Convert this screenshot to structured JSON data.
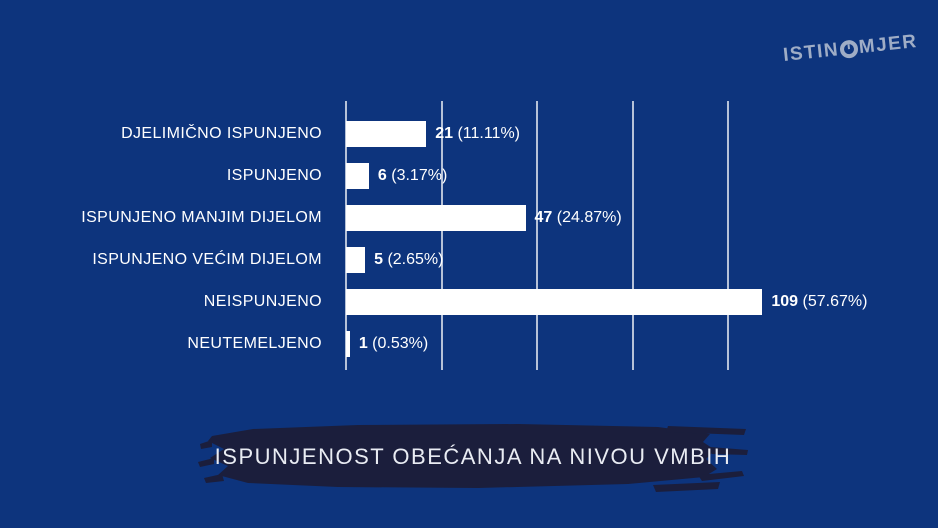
{
  "page": {
    "background_color": "#0d347d"
  },
  "logo": {
    "text_left": "ISTIN",
    "text_right": "MJER",
    "icon": "gauge-icon",
    "color": "#9fadc6"
  },
  "chart_data": {
    "type": "bar",
    "orientation": "horizontal",
    "title": "ISPUNJENOST OBEĆANJA NA NIVOU VMBIH",
    "categories": [
      "DJELIMIČNO ISPUNJENO",
      "ISPUNJENO",
      "ISPUNJENO MANJIM DIJELOM",
      "ISPUNJENO VEĆIM DIJELOM",
      "NEISPUNJENO",
      "NEUTEMELJENO"
    ],
    "values": [
      21,
      6,
      47,
      5,
      109,
      1
    ],
    "percents": [
      "11.11%",
      "3.17%",
      "24.87%",
      "2.65%",
      "57.67%",
      "0.53%"
    ],
    "value_labels": [
      "21 (11.11%)",
      "6 (3.17%)",
      "47 (24.87%)",
      "5 (2.65%)",
      "109 (57.67%)",
      "1 (0.53%)"
    ],
    "xlim": [
      0,
      109
    ],
    "gridlines_x": [
      0,
      25,
      50,
      75,
      100
    ],
    "bar_color": "#ffffff",
    "gridline_color": "rgba(255,255,255,0.7)",
    "grid": true,
    "legend": "none"
  },
  "banner": {
    "title": "ISPUNJENOST OBEĆANJA NA NIVOU VMBIH",
    "color": "#1b1e3c",
    "text_color": "#e9ecf3"
  }
}
